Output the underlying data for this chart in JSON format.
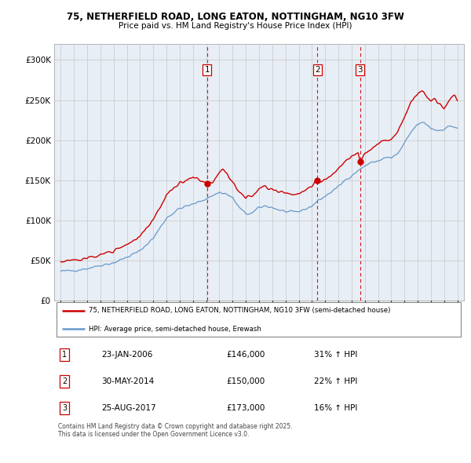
{
  "title": "75, NETHERFIELD ROAD, LONG EATON, NOTTINGHAM, NG10 3FW",
  "subtitle": "Price paid vs. HM Land Registry's House Price Index (HPI)",
  "property_label": "75, NETHERFIELD ROAD, LONG EATON, NOTTINGHAM, NG10 3FW (semi-detached house)",
  "hpi_label": "HPI: Average price, semi-detached house, Erewash",
  "footer": "Contains HM Land Registry data © Crown copyright and database right 2025.\nThis data is licensed under the Open Government Licence v3.0.",
  "transactions": [
    {
      "num": 1,
      "date": "23-JAN-2006",
      "price": 146000,
      "pct": "31%",
      "direction": "↑",
      "x_year": 2006.06
    },
    {
      "num": 2,
      "date": "30-MAY-2014",
      "price": 150000,
      "pct": "22%",
      "direction": "↑",
      "x_year": 2014.42
    },
    {
      "num": 3,
      "date": "25-AUG-2017",
      "price": 173000,
      "pct": "16%",
      "direction": "↑",
      "x_year": 2017.65
    }
  ],
  "property_color": "#cc0000",
  "hpi_color": "#6699cc",
  "vline_color": "#cc0000",
  "bg_fill_color": "#e8eef5",
  "ylim": [
    0,
    320000
  ],
  "yticks": [
    0,
    50000,
    100000,
    150000,
    200000,
    250000,
    300000
  ],
  "xlim_start": 1994.5,
  "xlim_end": 2025.5,
  "xticks": [
    1995,
    1996,
    1997,
    1998,
    1999,
    2000,
    2001,
    2002,
    2003,
    2004,
    2005,
    2006,
    2007,
    2008,
    2009,
    2010,
    2011,
    2012,
    2013,
    2014,
    2015,
    2016,
    2017,
    2018,
    2019,
    2020,
    2021,
    2022,
    2023,
    2024,
    2025
  ]
}
